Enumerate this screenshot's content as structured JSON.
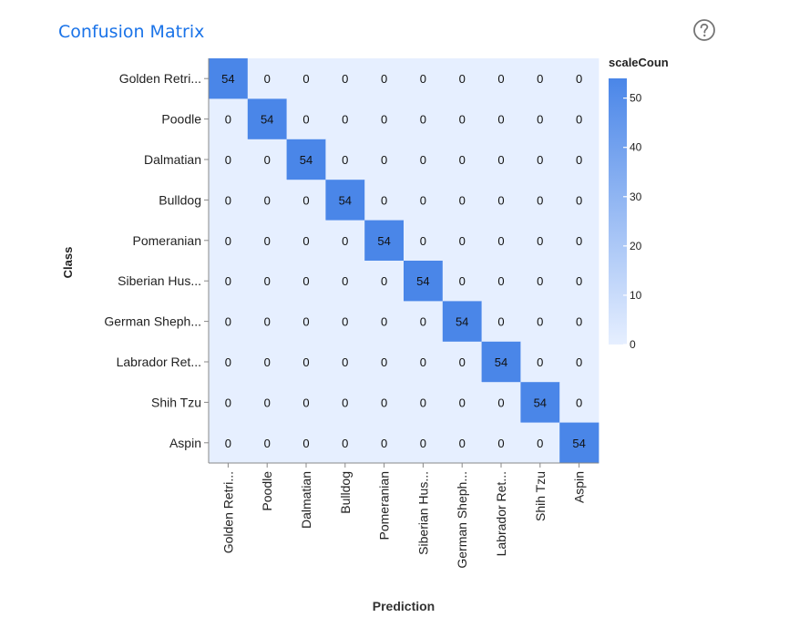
{
  "header": {
    "title": "Confusion Matrix",
    "help_icon": "help-circle-icon"
  },
  "colors": {
    "title": "#1a73e8",
    "cell_low": "#e6efff",
    "cell_high": "#4a86e8",
    "help_icon": "#757575"
  },
  "chart_data": {
    "type": "heatmap",
    "title": "",
    "xlabel": "Prediction",
    "ylabel": "Class",
    "legend_title": "scaleCoun",
    "legend_ticks": [
      0,
      10,
      20,
      30,
      40,
      50
    ],
    "legend_domain": [
      0,
      54
    ],
    "legend_position": "right",
    "y_categories": [
      "Golden Retri...",
      "Poodle",
      "Dalmatian",
      "Bulldog",
      "Pomeranian",
      "Siberian Hus...",
      "German Sheph...",
      "Labrador Ret...",
      "Shih Tzu",
      "Aspin"
    ],
    "x_categories": [
      "Golden Retri...",
      "Poodle",
      "Dalmatian",
      "Bulldog",
      "Pomeranian",
      "Siberian Hus...",
      "German Sheph...",
      "Labrador Ret...",
      "Shih Tzu",
      "Aspin"
    ],
    "values": [
      [
        54,
        0,
        0,
        0,
        0,
        0,
        0,
        0,
        0,
        0
      ],
      [
        0,
        54,
        0,
        0,
        0,
        0,
        0,
        0,
        0,
        0
      ],
      [
        0,
        0,
        54,
        0,
        0,
        0,
        0,
        0,
        0,
        0
      ],
      [
        0,
        0,
        0,
        54,
        0,
        0,
        0,
        0,
        0,
        0
      ],
      [
        0,
        0,
        0,
        0,
        54,
        0,
        0,
        0,
        0,
        0
      ],
      [
        0,
        0,
        0,
        0,
        0,
        54,
        0,
        0,
        0,
        0
      ],
      [
        0,
        0,
        0,
        0,
        0,
        0,
        54,
        0,
        0,
        0
      ],
      [
        0,
        0,
        0,
        0,
        0,
        0,
        0,
        54,
        0,
        0
      ],
      [
        0,
        0,
        0,
        0,
        0,
        0,
        0,
        0,
        54,
        0
      ],
      [
        0,
        0,
        0,
        0,
        0,
        0,
        0,
        0,
        0,
        54
      ]
    ]
  }
}
